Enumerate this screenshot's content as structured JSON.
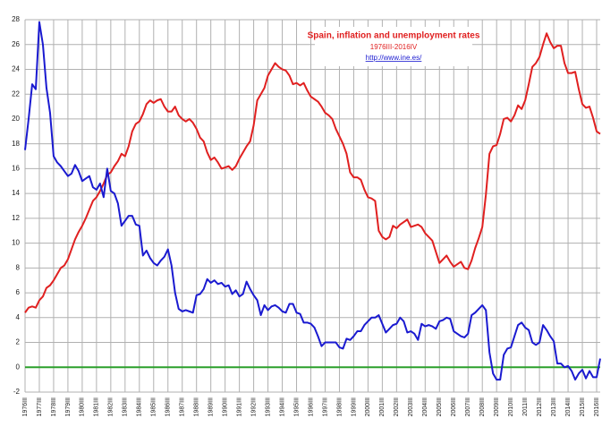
{
  "chart_data": {
    "type": "line",
    "title": "Spain, inflation and unemployment rates",
    "subtitle": "1976III-2016IV",
    "source": "http://www.ine.es/",
    "categories": [
      "1976III",
      null,
      null,
      null,
      "1977III",
      null,
      null,
      null,
      "1978III",
      null,
      null,
      null,
      "1979III",
      null,
      null,
      null,
      "1980III",
      null,
      null,
      null,
      "1981III",
      null,
      null,
      null,
      "1982III",
      null,
      null,
      null,
      "1983III",
      null,
      null,
      null,
      "1984III",
      null,
      null,
      null,
      "1985III",
      null,
      null,
      null,
      "1986III",
      null,
      null,
      null,
      "1987III",
      null,
      null,
      null,
      "1988III",
      null,
      null,
      null,
      "1989III",
      null,
      null,
      null,
      "1990III",
      null,
      null,
      null,
      "1991III",
      null,
      null,
      null,
      "1992III",
      null,
      null,
      null,
      "1993III",
      null,
      null,
      null,
      "1994III",
      null,
      null,
      null,
      "1995III",
      null,
      null,
      null,
      "1996III",
      null,
      null,
      null,
      "1997III",
      null,
      null,
      null,
      "1998III",
      null,
      null,
      null,
      "1999III",
      null,
      null,
      null,
      "2000III",
      null,
      null,
      null,
      "2001III",
      null,
      null,
      null,
      "2002III",
      null,
      null,
      null,
      "2003III",
      null,
      null,
      null,
      "2004III",
      null,
      null,
      null,
      "2005III",
      null,
      null,
      null,
      "2006III",
      null,
      null,
      null,
      "2007III",
      null,
      null,
      null,
      "2008III",
      null,
      null,
      null,
      "2009III",
      null,
      null,
      null,
      "2010III",
      null,
      null,
      null,
      "2011III",
      null,
      null,
      null,
      "2012III",
      null,
      null,
      null,
      "2013III",
      null,
      null,
      null,
      "2014III",
      null,
      null,
      null,
      "2015III",
      null,
      null,
      null,
      "2016III",
      null
    ],
    "series": [
      {
        "color": "#e02020",
        "values": [
          4.4,
          4.8,
          4.9,
          4.8,
          5.4,
          5.7,
          6.4,
          6.6,
          7.0,
          7.5,
          8.0,
          8.2,
          8.7,
          9.5,
          10.3,
          10.9,
          11.4,
          12.0,
          12.7,
          13.4,
          13.7,
          14.2,
          14.8,
          15.5,
          15.7,
          16.2,
          16.6,
          17.2,
          17.0,
          17.8,
          19.0,
          19.6,
          19.8,
          20.4,
          21.2,
          21.5,
          21.3,
          21.5,
          21.6,
          21.0,
          20.6,
          20.6,
          21.0,
          20.3,
          20.0,
          19.8,
          20.0,
          19.7,
          19.2,
          18.5,
          18.2,
          17.3,
          16.7,
          16.9,
          16.5,
          16.0,
          16.1,
          16.2,
          15.9,
          16.2,
          16.8,
          17.3,
          17.8,
          18.2,
          19.5,
          21.5,
          22.0,
          22.5,
          23.5,
          24.0,
          24.5,
          24.2,
          24.0,
          23.9,
          23.5,
          22.8,
          22.9,
          22.7,
          22.9,
          22.3,
          21.8,
          21.6,
          21.4,
          21.0,
          20.5,
          20.3,
          20.0,
          19.2,
          18.6,
          18.0,
          17.2,
          15.7,
          15.3,
          15.3,
          15.1,
          14.3,
          13.7,
          13.6,
          13.4,
          11.0,
          10.5,
          10.3,
          10.5,
          11.4,
          11.2,
          11.5,
          11.7,
          11.9,
          11.3,
          11.4,
          11.5,
          11.3,
          10.8,
          10.5,
          10.2,
          9.3,
          8.4,
          8.7,
          9.0,
          8.5,
          8.1,
          8.3,
          8.5,
          8.0,
          7.9,
          8.6,
          9.6,
          10.4,
          11.3,
          13.9,
          17.2,
          17.8,
          17.9,
          18.8,
          20.0,
          20.1,
          19.8,
          20.3,
          21.1,
          20.8,
          21.5,
          22.8,
          24.2,
          24.5,
          25.0,
          26.0,
          26.9,
          26.2,
          25.7,
          25.9,
          25.9,
          24.5,
          23.7,
          23.7,
          23.8,
          22.4,
          21.2,
          20.9,
          21.0,
          20.1,
          19.0,
          18.8
        ]
      },
      {
        "color": "#1a1ad0",
        "values": [
          17.5,
          20.0,
          22.8,
          22.4,
          27.8,
          26.0,
          22.5,
          20.5,
          17.0,
          16.5,
          16.2,
          15.8,
          15.4,
          15.6,
          16.3,
          15.8,
          15.0,
          15.2,
          15.4,
          14.5,
          14.3,
          14.8,
          13.7,
          16.0,
          14.2,
          14.0,
          13.2,
          11.4,
          11.8,
          12.2,
          12.2,
          11.5,
          11.4,
          9.0,
          9.4,
          8.8,
          8.4,
          8.2,
          8.6,
          8.9,
          9.5,
          8.2,
          6.0,
          4.7,
          4.5,
          4.6,
          4.5,
          4.4,
          5.8,
          5.9,
          6.3,
          7.1,
          6.8,
          7.0,
          6.7,
          6.8,
          6.5,
          6.6,
          5.9,
          6.2,
          5.7,
          5.9,
          6.9,
          6.3,
          5.8,
          5.4,
          4.2,
          5.0,
          4.6,
          4.9,
          5.0,
          4.8,
          4.5,
          4.4,
          5.1,
          5.1,
          4.4,
          4.3,
          3.6,
          3.6,
          3.5,
          3.2,
          2.5,
          1.7,
          2.0,
          2.0,
          2.0,
          2.0,
          1.6,
          1.5,
          2.3,
          2.2,
          2.5,
          2.9,
          2.9,
          3.4,
          3.7,
          4.0,
          4.0,
          4.2,
          3.5,
          2.8,
          3.1,
          3.4,
          3.5,
          4.0,
          3.7,
          2.8,
          2.9,
          2.7,
          2.2,
          3.5,
          3.3,
          3.4,
          3.3,
          3.1,
          3.7,
          3.8,
          4.0,
          3.9,
          2.9,
          2.7,
          2.5,
          2.4,
          2.7,
          4.2,
          4.4,
          4.7,
          5.0,
          4.6,
          1.2,
          -0.5,
          -1.0,
          -1.0,
          1.0,
          1.5,
          1.6,
          2.5,
          3.4,
          3.6,
          3.2,
          3.0,
          2.0,
          1.8,
          2.0,
          3.4,
          3.0,
          2.5,
          2.1,
          0.3,
          0.3,
          0.0,
          0.1,
          -0.3,
          -1.0,
          -0.5,
          -0.2,
          -0.9,
          -0.3,
          -0.8,
          -0.8,
          0.7
        ]
      }
    ],
    "ylim": [
      -2,
      28
    ],
    "yticks": [
      -2,
      0,
      2,
      4,
      6,
      8,
      10,
      12,
      14,
      16,
      18,
      20,
      22,
      24,
      26,
      28
    ],
    "grid": true,
    "zero_line_color": "#2ca02c"
  }
}
